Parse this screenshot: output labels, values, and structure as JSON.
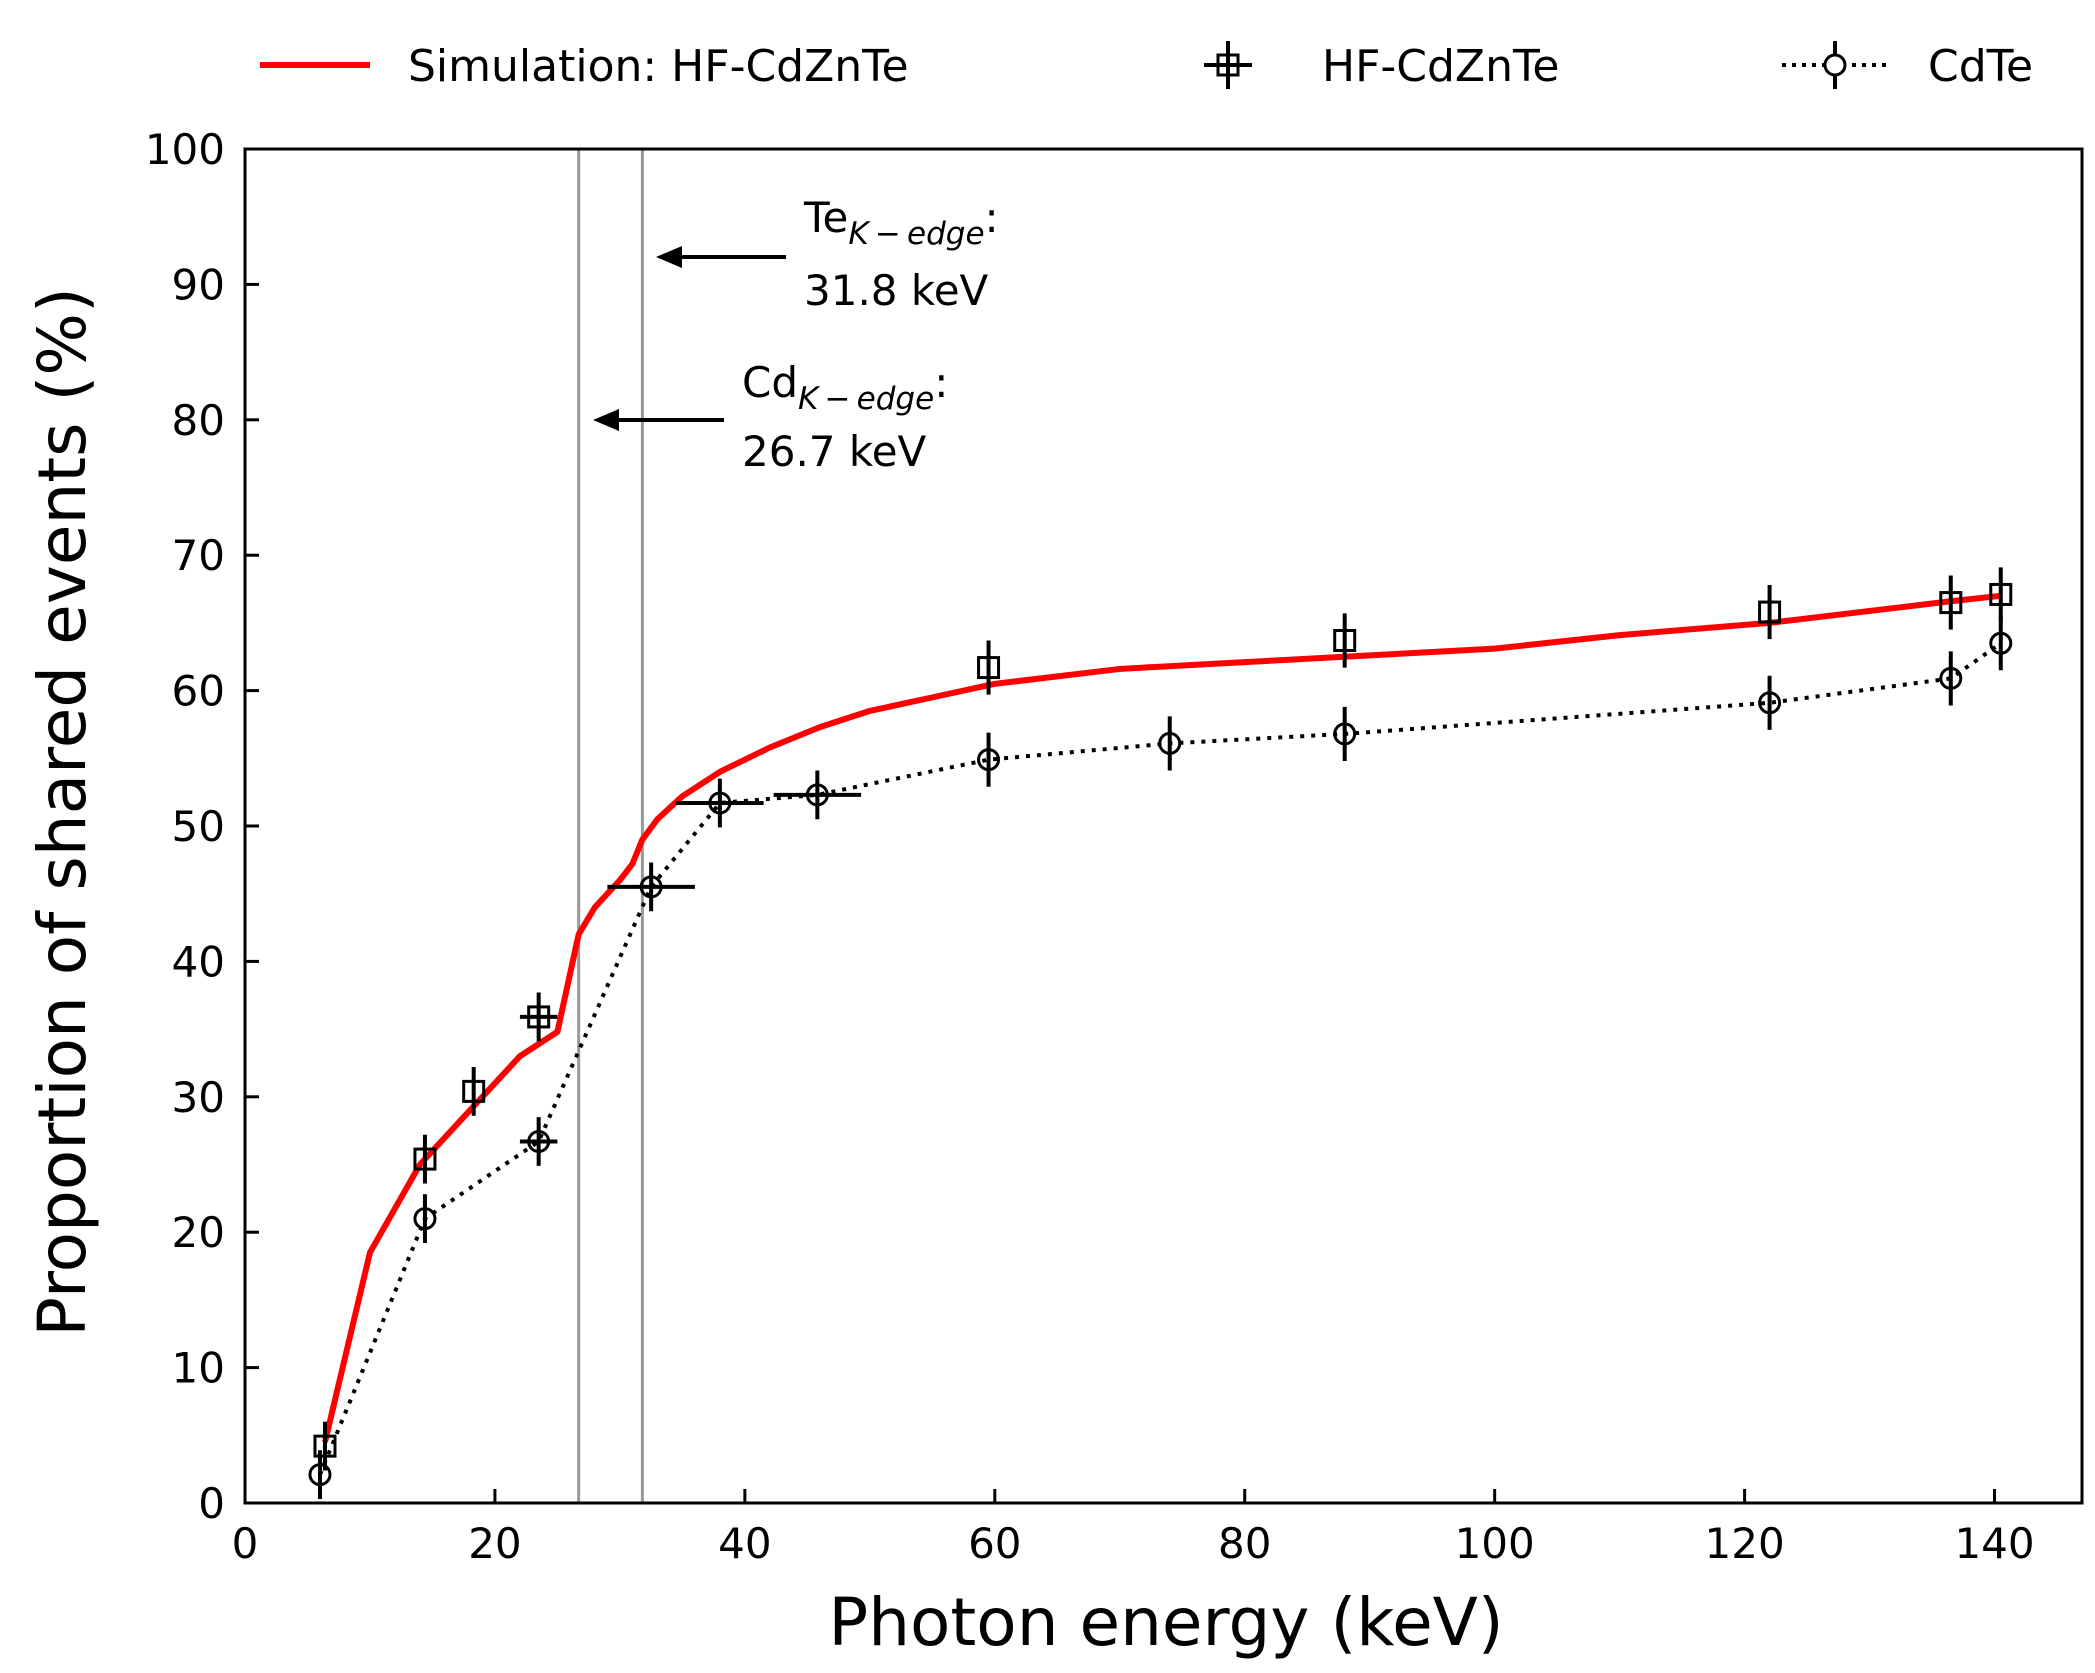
{
  "chart_data": {
    "type": "line",
    "title": "",
    "xlabel": "Photon energy (keV)",
    "ylabel": "Proportion of shared events (%)",
    "xlim": [
      0,
      147
    ],
    "ylim": [
      0,
      100
    ],
    "xticks": [
      "0",
      "20",
      "40",
      "60",
      "80",
      "100",
      "120",
      "140"
    ],
    "yticks": [
      "0",
      "10",
      "20",
      "30",
      "40",
      "50",
      "60",
      "70",
      "80",
      "90",
      "100"
    ],
    "grid": false,
    "legend_position": "top",
    "series": [
      {
        "name": "Simulation: HF-CdZnTe",
        "style": "line",
        "color": "#ff0000",
        "x": [
          6.4,
          10,
          14,
          18,
          22,
          25,
          26.7,
          28,
          30,
          31,
          31.8,
          33,
          35,
          38,
          42,
          46,
          50,
          55,
          60,
          70,
          80,
          90,
          100,
          110,
          122,
          136.5,
          140.5
        ],
        "y": [
          4.5,
          18.5,
          25,
          29,
          33,
          34.8,
          42,
          44,
          46,
          47.2,
          49,
          50.5,
          52.2,
          54,
          55.8,
          57.3,
          58.5,
          59.5,
          60.5,
          61.6,
          62.1,
          62.6,
          63.1,
          64.1,
          65,
          66.6,
          67
        ]
      },
      {
        "name": "HF-CdZnTe",
        "style": "markers",
        "marker": "square",
        "color": "#000000",
        "x": [
          6.4,
          14.4,
          18.3,
          23.5,
          59.5,
          88,
          122,
          136.5,
          140.5
        ],
        "y": [
          4.2,
          25.4,
          30.4,
          35.9,
          61.7,
          63.7,
          65.8,
          66.5,
          67.1
        ],
        "y_err": [
          1.8,
          1.8,
          1.8,
          1.8,
          2,
          2,
          2,
          2,
          2
        ],
        "x_err": [
          0,
          0,
          0,
          1.5,
          0,
          0,
          0,
          0,
          0
        ]
      },
      {
        "name": "CdTe",
        "style": "dotted-line-markers",
        "marker": "circle",
        "color": "#000000",
        "x": [
          6.0,
          14.4,
          23.5,
          32.5,
          38,
          45.8,
          59.5,
          74,
          88,
          122,
          136.5,
          140.5
        ],
        "y": [
          2.1,
          21,
          26.7,
          45.5,
          51.7,
          52.3,
          54.9,
          56.1,
          56.8,
          59.1,
          60.9,
          63.5
        ],
        "y_err": [
          1.8,
          1.8,
          1.8,
          1.8,
          1.8,
          1.8,
          2,
          2,
          2,
          2,
          2,
          2
        ],
        "x_err": [
          0,
          0,
          1.5,
          3.5,
          3.5,
          3.5,
          0,
          0,
          0,
          0,
          0,
          0
        ]
      }
    ],
    "vertical_lines": [
      26.7,
      31.8
    ],
    "annotations": [
      {
        "name": "te-k-edge",
        "element": "Te",
        "subscript": "K − edge",
        "suffix": ":",
        "value_text": "31.8 keV",
        "arrow_to_x": 31.8,
        "arrow_y": 92
      },
      {
        "name": "cd-k-edge",
        "element": "Cd",
        "subscript": "K − edge",
        "suffix": ":",
        "value_text": "26.7 keV",
        "arrow_to_x": 26.7,
        "arrow_y": 80
      }
    ]
  }
}
